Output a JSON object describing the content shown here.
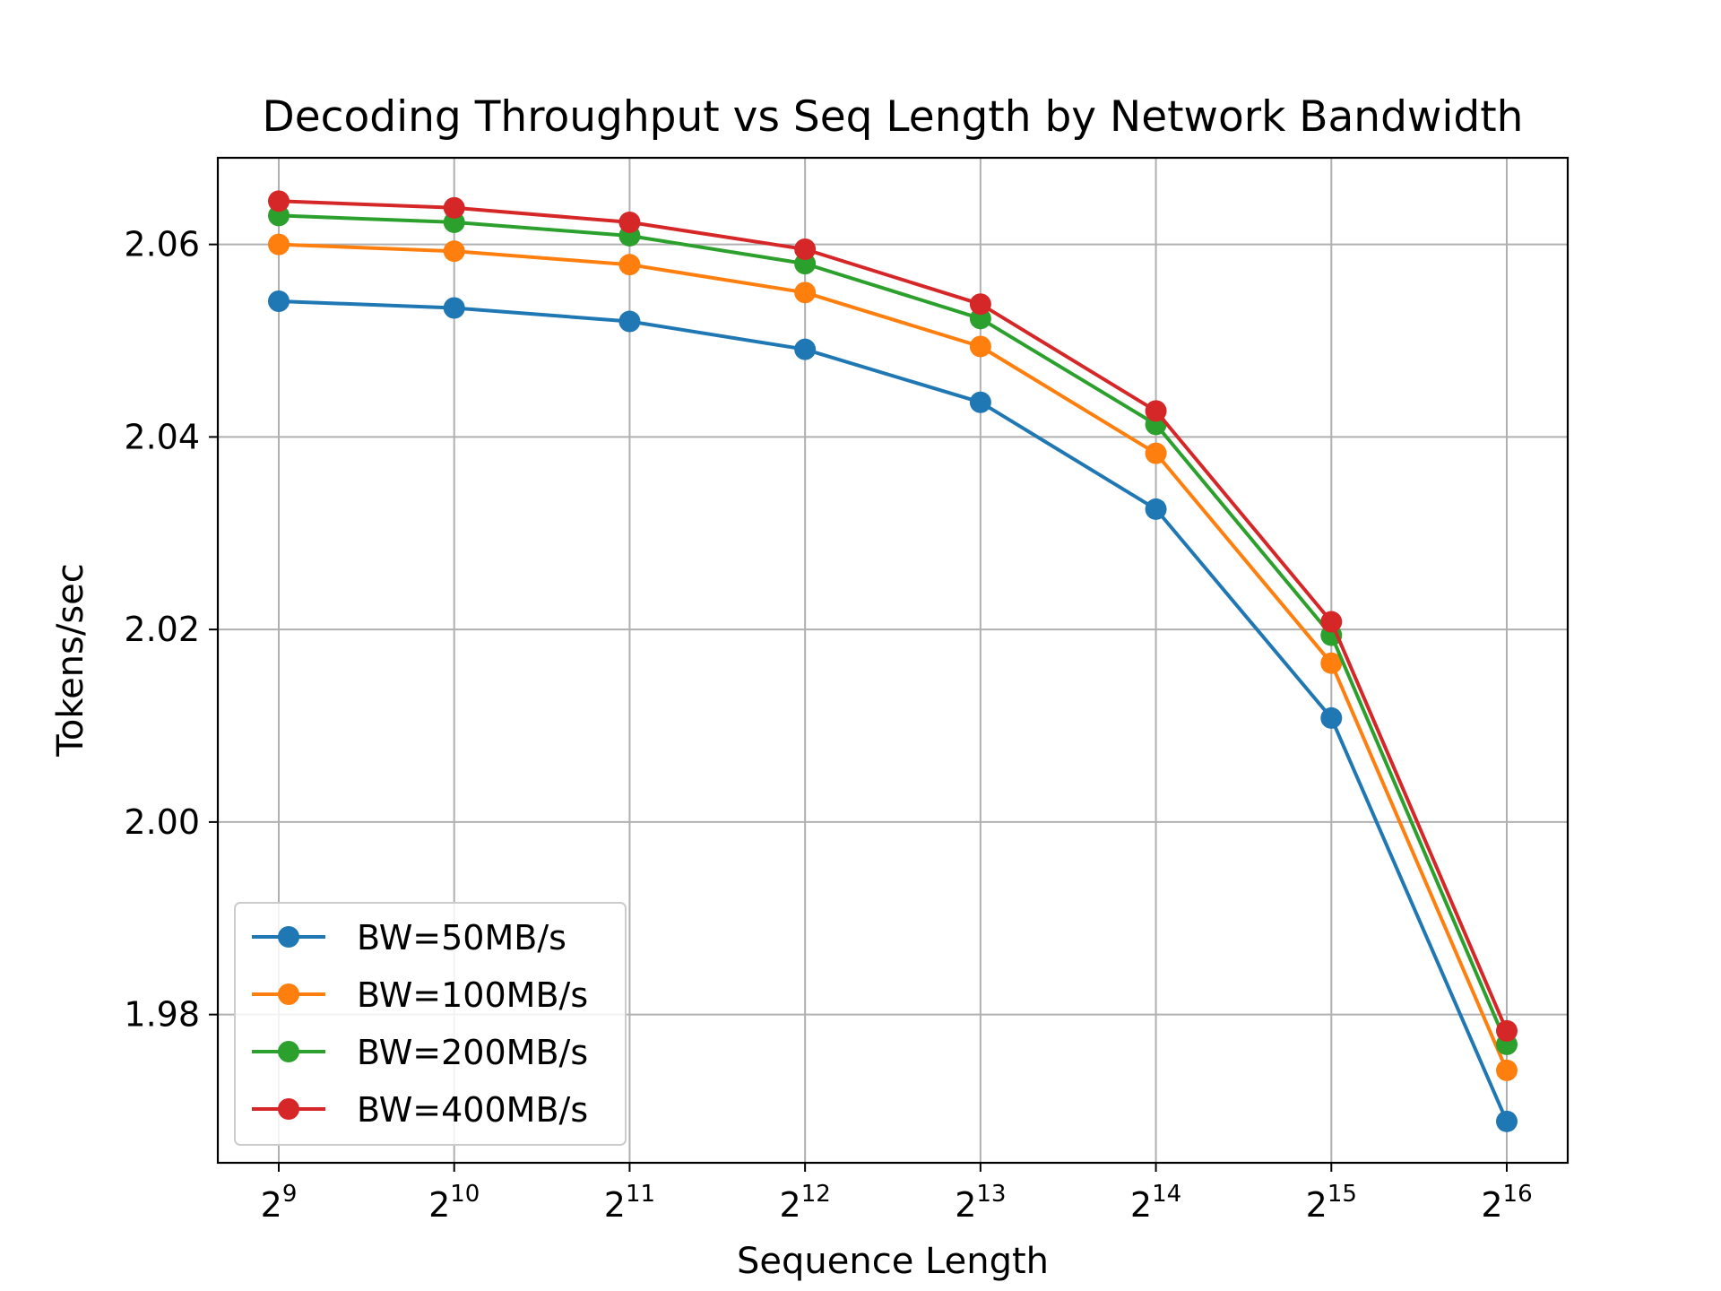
{
  "chart_data": {
    "type": "line",
    "title": "Decoding Throughput vs Seq Length by Network Bandwidth",
    "xlabel": "Sequence Length",
    "ylabel": "Tokens/sec",
    "x_scale": "log2",
    "x": [
      512,
      1024,
      2048,
      4096,
      8192,
      16384,
      32768,
      65536
    ],
    "x_tick_labels": [
      {
        "base": "2",
        "exp": "9"
      },
      {
        "base": "2",
        "exp": "10"
      },
      {
        "base": "2",
        "exp": "11"
      },
      {
        "base": "2",
        "exp": "12"
      },
      {
        "base": "2",
        "exp": "13"
      },
      {
        "base": "2",
        "exp": "14"
      },
      {
        "base": "2",
        "exp": "15"
      },
      {
        "base": "2",
        "exp": "16"
      }
    ],
    "y_ticks": [
      "1.98",
      "2.00",
      "2.02",
      "2.04",
      "2.06"
    ],
    "y_tick_values": [
      1.98,
      2.0,
      2.02,
      2.04,
      2.06
    ],
    "ylim": [
      1.9646,
      2.069
    ],
    "grid": true,
    "legend_position": "lower-left",
    "series": [
      {
        "name": "BW=50MB/s",
        "color": "#1f77b4",
        "values": [
          2.0541,
          2.0534,
          2.052,
          2.0491,
          2.0436,
          2.0325,
          2.0108,
          1.9689
        ]
      },
      {
        "name": "BW=100MB/s",
        "color": "#ff7f0e",
        "values": [
          2.06,
          2.0593,
          2.0579,
          2.055,
          2.0494,
          2.0383,
          2.0165,
          1.9742
        ]
      },
      {
        "name": "BW=200MB/s",
        "color": "#2ca02c",
        "values": [
          2.063,
          2.0623,
          2.0609,
          2.058,
          2.0523,
          2.0413,
          2.0194,
          1.9769
        ]
      },
      {
        "name": "BW=400MB/s",
        "color": "#d62728",
        "values": [
          2.0645,
          2.0638,
          2.0623,
          2.0595,
          2.0538,
          2.0427,
          2.0208,
          1.9783
        ]
      }
    ]
  }
}
